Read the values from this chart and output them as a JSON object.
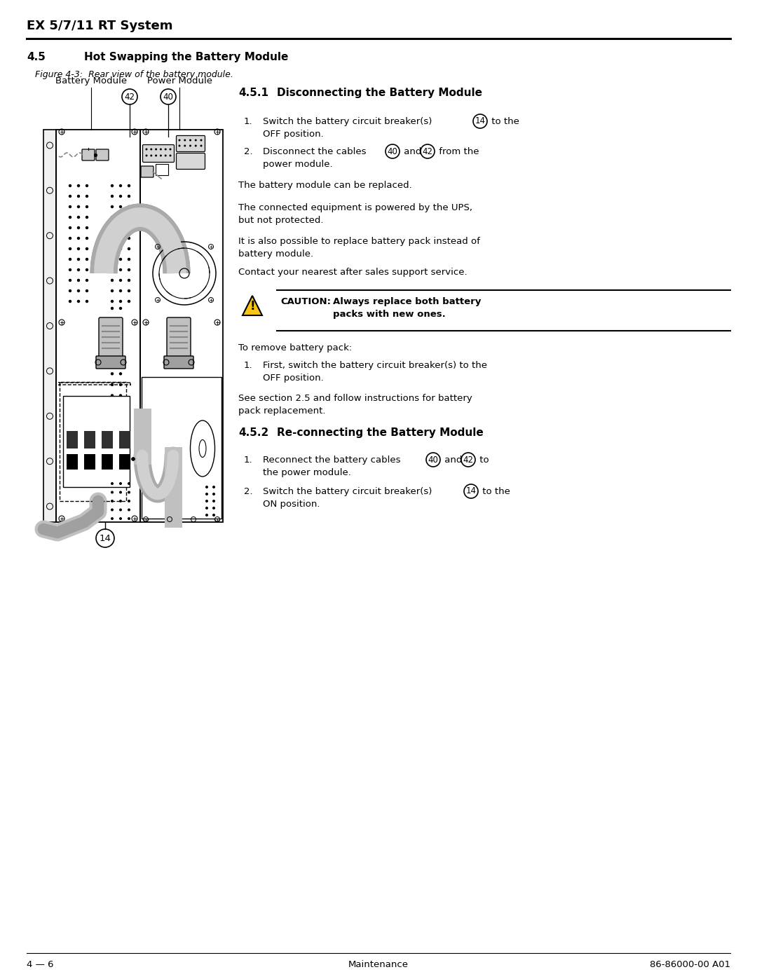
{
  "page_title": "EX 5/7/11 RT System",
  "section_num": "4.5",
  "section_title": "Hot Swapping the Battery Module",
  "figure_caption": "Figure 4-3:  Rear view of the battery module.",
  "section_451_num": "4.5.1",
  "section_451_title": "Disconnecting the Battery Module",
  "section_452_num": "4.5.2",
  "section_452_title": "Re-connecting the Battery Module",
  "footer_left": "4 — 6",
  "footer_center": "Maintenance",
  "footer_right": "86-86000-00 A01",
  "bg": "#ffffff"
}
